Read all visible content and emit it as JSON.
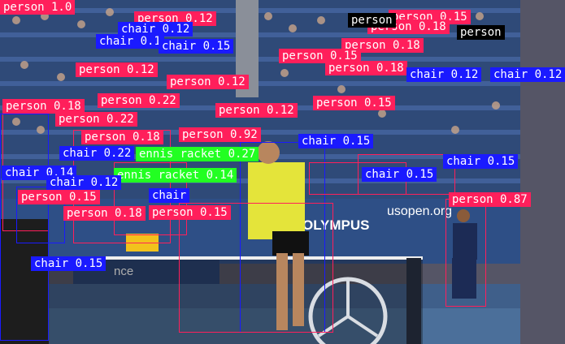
{
  "colors": {
    "person": "#ff1f5b",
    "chair": "#1a1aff",
    "tennis_racket": "#22ff22",
    "highlight_person": "#000000"
  },
  "banners": {
    "sponsor": "OLYMPUS",
    "site": "usopen.org",
    "lower_board": "nce"
  },
  "detections": [
    {
      "label": "person 0.12",
      "cls": "person"
    },
    {
      "label": "person 0.15",
      "cls": "person"
    },
    {
      "label": "person 0.18",
      "cls": "person"
    },
    {
      "label": "person",
      "cls": "highlight_person"
    },
    {
      "label": "person",
      "cls": "highlight_person"
    },
    {
      "label": "chair 0.12",
      "cls": "chair"
    },
    {
      "label": "chair 0.1",
      "cls": "chair"
    },
    {
      "label": "chair 0.15",
      "cls": "chair"
    },
    {
      "label": "person 0.18",
      "cls": "person"
    },
    {
      "label": "person 0.15",
      "cls": "person"
    },
    {
      "label": "person 0.18",
      "cls": "person"
    },
    {
      "label": "person 0.12",
      "cls": "person"
    },
    {
      "label": "person 0.12",
      "cls": "person"
    },
    {
      "label": "chair 0.12",
      "cls": "chair"
    },
    {
      "label": "chair 0.12",
      "cls": "chair"
    },
    {
      "label": "person 0.18",
      "cls": "person"
    },
    {
      "label": "person 0.22",
      "cls": "person"
    },
    {
      "label": "person 0.12",
      "cls": "person"
    },
    {
      "label": "person 0.15",
      "cls": "person"
    },
    {
      "label": "person 0.22",
      "cls": "person"
    },
    {
      "label": "person 0.18",
      "cls": "person"
    },
    {
      "label": "person 0.92",
      "cls": "person"
    },
    {
      "label": "chair 0.15",
      "cls": "chair"
    },
    {
      "label": "chair 0.22",
      "cls": "chair"
    },
    {
      "label": "ennis racket 0.27",
      "cls": "tennis_racket"
    },
    {
      "label": "chair 0.14",
      "cls": "chair"
    },
    {
      "label": "ennis racket 0.14",
      "cls": "tennis_racket"
    },
    {
      "label": "chair 0.12",
      "cls": "chair"
    },
    {
      "label": "chair 0.15",
      "cls": "chair"
    },
    {
      "label": "chair 0.15",
      "cls": "chair"
    },
    {
      "label": "chair",
      "cls": "chair"
    },
    {
      "label": "person 0.15",
      "cls": "person"
    },
    {
      "label": "person 0.15",
      "cls": "person"
    },
    {
      "label": "person 0.18",
      "cls": "person"
    },
    {
      "label": "chair 0.15",
      "cls": "chair"
    },
    {
      "label": "person 0.87",
      "cls": "person"
    },
    {
      "label": "person 1.0",
      "cls": "person"
    }
  ]
}
